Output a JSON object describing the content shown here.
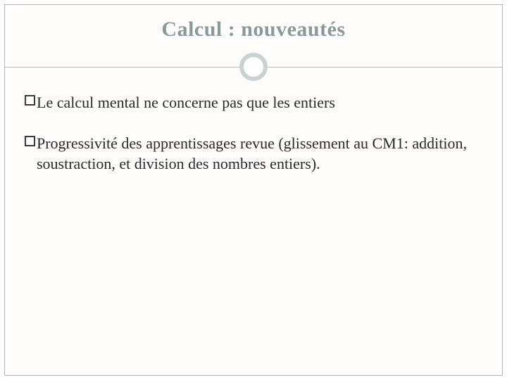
{
  "slide": {
    "title": "Calcul : nouveautés",
    "title_color": "#8a9a9a",
    "title_fontsize": 30,
    "title_font_family": "Georgia, 'Times New Roman', serif",
    "title_font_weight": "bold",
    "divider": {
      "line_color": "#b8b8b8",
      "circle_border_color": "#c9d2d2",
      "circle_border_width": 6,
      "circle_diameter": 28,
      "circle_bg": "#ffffff"
    },
    "frame_border_color": "#b8b8b8",
    "background_color": "#fdfcfb",
    "bullets": [
      {
        "text": "Le calcul mental ne concerne pas que les entiers"
      },
      {
        "text": "Progressivité des apprentissages revue (glissement au CM1: addition, soustraction, et division des nombres entiers)."
      }
    ],
    "bullet_style": {
      "marker_size": 15,
      "marker_border_color": "#3a3a3a",
      "marker_border_width": 2,
      "marker_fill": "transparent",
      "text_color": "#2a2a2a",
      "text_fontsize": 22
    }
  }
}
